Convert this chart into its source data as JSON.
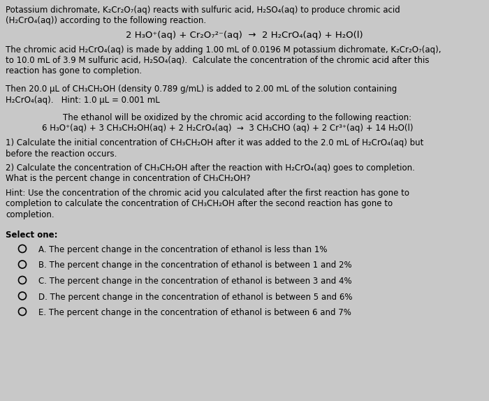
{
  "bg_color": "#c8c8c8",
  "text_color": "#000000",
  "font_size": 8.5,
  "title_lines": [
    "Potassium dichromate, K₂Cr₂O₇(aq) reacts with sulfuric acid, H₂SO₄(aq) to produce chromic acid",
    "(H₂CrO₄(aq)) according to the following reaction."
  ],
  "equation1": "2 H₃O⁺(aq) + Cr₂O₇²⁻(aq)  →  2 H₂CrO₄(aq) + H₂O(l)",
  "para1_lines": [
    "The chromic acid H₂CrO₄(aq) is made by adding 1.00 mL of 0.0196 M potassium dichromate, K₂Cr₂O₇(aq),",
    "to 10.0 mL of 3.9 M sulfuric acid, H₂SO₄(aq).  Calculate the concentration of the chromic acid after this",
    "reaction has gone to completion."
  ],
  "para2_lines": [
    "Then 20.0 μL of CH₃CH₂OH (density 0.789 g/mL) is added to 2.00 mL of the solution containing",
    "H₂CrO₄(aq).   Hint: 1.0 μL = 0.001 mL"
  ],
  "indent_line": "The ethanol will be oxidized by the chromic acid according to the following reaction:",
  "equation2": "6 H₃O⁺(aq) + 3 CH₃CH₂OH(aq) + 2 H₂CrO₄(aq)  →  3 CH₃CHO (aq) + 2 Cr³⁺(aq) + 14 H₂O(l)",
  "q1_lines": [
    "1) Calculate the initial concentration of CH₃CH₂OH after it was added to the 2.0 mL of H₂CrO₄(aq) but",
    "before the reaction occurs."
  ],
  "q2_line": "2) Calculate the concentration of CH₃CH₂OH after the reaction with H₂CrO₄(aq) goes to completion.",
  "q3_line": "What is the percent change in concentration of CH₃CH₂OH?",
  "hint_lines": [
    "Hint: Use the concentration of the chromic acid you calculated after the first reaction has gone to",
    "completion to calculate the concentration of CH₃CH₂OH after the second reaction has gone to",
    "completion."
  ],
  "select_label": "Select one:",
  "options": [
    "A. The percent change in the concentration of ethanol is less than 1%",
    "B. The percent change in the concentration of ethanol is between 1 and 2%",
    "C. The percent change in the concentration of ethanol is between 3 and 4%",
    "D. The percent change in the concentration of ethanol is between 5 and 6%",
    "E. The percent change in the concentration of ethanol is between 6 and 7%"
  ]
}
